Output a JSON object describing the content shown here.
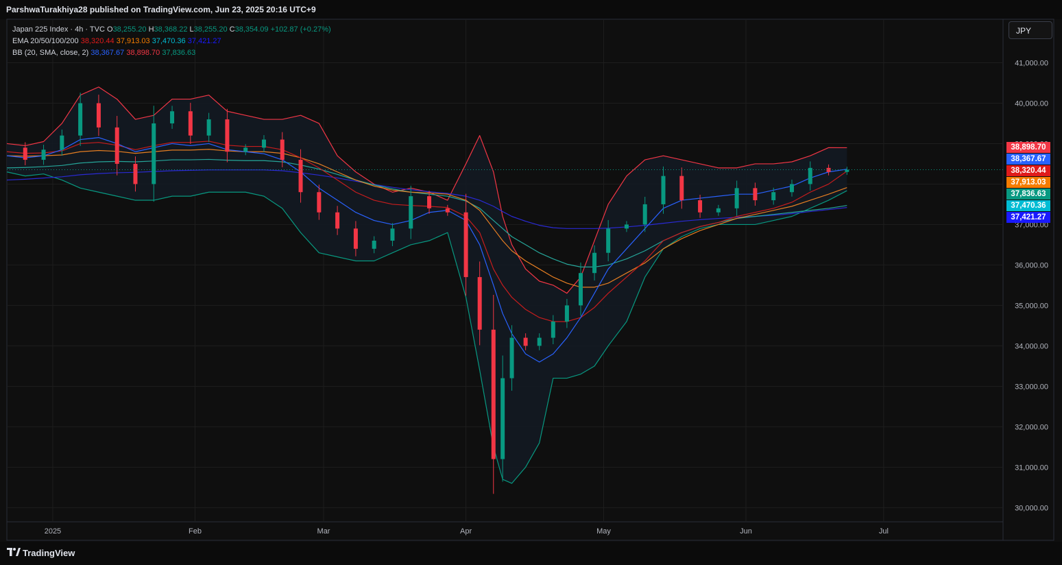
{
  "header": {
    "published": "ParshwaTurakhiya28 published on TradingView.com, Jun 23, 2025 20:16 UTC+9"
  },
  "legend": {
    "symbol": "Japan 225 Index · 4h · TVC",
    "o_label": "O",
    "o_value": "38,255.20",
    "h_label": "H",
    "h_value": "38,368.22",
    "l_label": "L",
    "l_value": "38,255.20",
    "c_label": "C",
    "c_value": "38,354.09",
    "change": "+102.87 (+0.27%)",
    "ema_label": "EMA 20/50/100/200",
    "ema20": "38,320.44",
    "ema50": "37,913.03",
    "ema100": "37,470.36",
    "ema200": "37,421.27",
    "bb_label": "BB (20, SMA, close, 2)",
    "bb_basis": "38,367.67",
    "bb_upper": "38,898.70",
    "bb_lower": "37,836.63"
  },
  "currency_button": "JPY",
  "price_tags": [
    {
      "text": "38,898.70",
      "value": 38898.7,
      "color": "#f23645"
    },
    {
      "text": "38,367.67",
      "value": 38367.67,
      "color": "#2962ff"
    },
    {
      "text": "38,320.44",
      "value": 38320.44,
      "color": "#e01b1b"
    },
    {
      "text": "37,913.03",
      "value": 37913.03,
      "color": "#f57c00"
    },
    {
      "text": "37,836.63",
      "value": 37836.63,
      "color": "#089981"
    },
    {
      "text": "37,470.36",
      "value": 37470.36,
      "color": "#00bcd4"
    },
    {
      "text": "37,421.27",
      "value": 37421.27,
      "color": "#1a1aff"
    }
  ],
  "footer": {
    "brand": "TradingView"
  },
  "colors": {
    "up": "#089981",
    "down": "#f23645",
    "ema20": "#c81d1d",
    "ema50": "#e67e22",
    "ema100": "#26a69a",
    "ema200": "#2a2ad4",
    "bb_basis": "#2962ff",
    "bb_band": "#f23645",
    "bb_lower": "#089981",
    "bb_fill": "#131a22",
    "grid": "#1e1e1e",
    "axis_text": "#b2b5be"
  },
  "chart_data": {
    "type": "candlestick",
    "timeframe": "4h",
    "ylim": [
      29700,
      41500
    ],
    "y_ticks": [
      30000,
      31000,
      32000,
      33000,
      34000,
      35000,
      36000,
      37000,
      38000,
      39000,
      40000,
      41000
    ],
    "y_tick_labels": [
      "30,000.00",
      "31,000.00",
      "32,000.00",
      "33,000.00",
      "34,000.00",
      "35,000.00",
      "36,000.00",
      "37,000.00",
      "38,000.00",
      "39,000.00",
      "40,000.00",
      "41,000.00"
    ],
    "x_range": [
      "2024-12-22",
      "2025-07-27"
    ],
    "x_ticks": [
      {
        "label": "2025",
        "date": "2025-01-01"
      },
      {
        "label": "Feb",
        "date": "2025-02-01"
      },
      {
        "label": "Mar",
        "date": "2025-03-01"
      },
      {
        "label": "Apr",
        "date": "2025-04-01"
      },
      {
        "label": "May",
        "date": "2025-05-01"
      },
      {
        "label": "Jun",
        "date": "2025-06-01"
      },
      {
        "label": "Jul",
        "date": "2025-07-01"
      }
    ],
    "last_price": 38354.09,
    "close_series": {
      "dates": [
        "2024-12-22",
        "2024-12-26",
        "2024-12-30",
        "2025-01-03",
        "2025-01-07",
        "2025-01-11",
        "2025-01-15",
        "2025-01-19",
        "2025-01-23",
        "2025-01-27",
        "2025-01-31",
        "2025-02-04",
        "2025-02-08",
        "2025-02-12",
        "2025-02-16",
        "2025-02-20",
        "2025-02-24",
        "2025-02-28",
        "2025-03-04",
        "2025-03-08",
        "2025-03-12",
        "2025-03-16",
        "2025-03-20",
        "2025-03-24",
        "2025-03-28",
        "2025-04-01",
        "2025-04-04",
        "2025-04-07",
        "2025-04-09",
        "2025-04-11",
        "2025-04-14",
        "2025-04-17",
        "2025-04-20",
        "2025-04-23",
        "2025-04-26",
        "2025-04-29",
        "2025-05-02",
        "2025-05-06",
        "2025-05-10",
        "2025-05-14",
        "2025-05-18",
        "2025-05-22",
        "2025-05-26",
        "2025-05-30",
        "2025-06-03",
        "2025-06-07",
        "2025-06-11",
        "2025-06-15",
        "2025-06-19",
        "2025-06-23"
      ],
      "values": [
        38900,
        38600,
        38850,
        39200,
        40000,
        39400,
        38500,
        38000,
        39500,
        39800,
        39200,
        39600,
        38800,
        38900,
        39100,
        38600,
        37800,
        37300,
        36900,
        36400,
        36600,
        36900,
        37700,
        37400,
        37300,
        35700,
        34400,
        31200,
        33200,
        34200,
        34000,
        34200,
        34600,
        35000,
        35800,
        36300,
        36900,
        37000,
        37500,
        38200,
        37600,
        37300,
        37400,
        37900,
        37600,
        37800,
        38000,
        38400,
        38300,
        38354
      ]
    },
    "ema20": [
      38800,
      38760,
      38770,
      38820,
      39000,
      39030,
      38960,
      38850,
      38950,
      39030,
      39030,
      39060,
      38960,
      38930,
      38930,
      38850,
      38650,
      38400,
      38100,
      37800,
      37600,
      37500,
      37470,
      37450,
      37420,
      37200,
      36800,
      35900,
      35500,
      35200,
      34900,
      34700,
      34600,
      34600,
      34700,
      34950,
      35300,
      35700,
      36100,
      36600,
      36800,
      36950,
      37050,
      37200,
      37300,
      37400,
      37550,
      37800,
      38000,
      38320
    ],
    "ema50": [
      38700,
      38690,
      38700,
      38720,
      38800,
      38830,
      38810,
      38760,
      38800,
      38840,
      38840,
      38860,
      38820,
      38800,
      38800,
      38760,
      38650,
      38500,
      38300,
      38100,
      37950,
      37850,
      37800,
      37780,
      37750,
      37600,
      37350,
      36900,
      36600,
      36350,
      36100,
      35900,
      35700,
      35550,
      35450,
      35450,
      35550,
      35800,
      36050,
      36400,
      36650,
      36850,
      37000,
      37150,
      37250,
      37350,
      37450,
      37600,
      37750,
      37913
    ],
    "ema100": [
      38400,
      38410,
      38430,
      38460,
      38520,
      38550,
      38560,
      38550,
      38570,
      38600,
      38600,
      38610,
      38590,
      38580,
      38580,
      38550,
      38470,
      38370,
      38240,
      38100,
      37980,
      37880,
      37800,
      37750,
      37700,
      37580,
      37400,
      37100,
      36900,
      36700,
      36500,
      36300,
      36150,
      36020,
      35950,
      35950,
      36000,
      36150,
      36350,
      36600,
      36800,
      36950,
      37050,
      37150,
      37200,
      37250,
      37300,
      37350,
      37400,
      37470
    ],
    "ema200": [
      38100,
      38120,
      38150,
      38180,
      38230,
      38260,
      38280,
      38290,
      38310,
      38330,
      38340,
      38350,
      38350,
      38350,
      38350,
      38330,
      38280,
      38220,
      38150,
      38070,
      37990,
      37920,
      37860,
      37810,
      37770,
      37700,
      37600,
      37450,
      37320,
      37200,
      37080,
      36980,
      36920,
      36900,
      36900,
      36900,
      36910,
      36940,
      36980,
      37030,
      37080,
      37120,
      37150,
      37180,
      37200,
      37230,
      37270,
      37320,
      37370,
      37421
    ],
    "bb_upper": [
      39000,
      38950,
      39050,
      39500,
      40200,
      40400,
      40100,
      39600,
      39700,
      40100,
      40100,
      40200,
      39800,
      39700,
      39600,
      39600,
      39700,
      39500,
      38700,
      38300,
      38000,
      37800,
      37900,
      37800,
      37600,
      38500,
      39200,
      38300,
      37200,
      36500,
      35900,
      35600,
      35500,
      35300,
      35700,
      36600,
      37500,
      38200,
      38600,
      38700,
      38600,
      38500,
      38400,
      38400,
      38500,
      38500,
      38550,
      38700,
      38900,
      38899
    ],
    "bb_basis": [
      38700,
      38650,
      38700,
      38850,
      39100,
      39150,
      39000,
      38800,
      38900,
      39000,
      38950,
      39000,
      38850,
      38800,
      38750,
      38600,
      38300,
      37900,
      37600,
      37300,
      37100,
      37000,
      37100,
      37300,
      37350,
      37100,
      36500,
      35500,
      34800,
      34300,
      33800,
      33600,
      33800,
      34200,
      34700,
      35300,
      35900,
      36400,
      36900,
      37400,
      37600,
      37650,
      37700,
      37750,
      37750,
      37850,
      37950,
      38150,
      38300,
      38368
    ],
    "bb_lower": [
      38300,
      38200,
      38250,
      38100,
      37900,
      37800,
      37700,
      37600,
      37600,
      37700,
      37700,
      37800,
      37800,
      37800,
      37700,
      37400,
      36800,
      36300,
      36200,
      36100,
      36100,
      36300,
      36500,
      36600,
      36800,
      35200,
      33400,
      31500,
      30700,
      30600,
      31000,
      31600,
      33200,
      33200,
      33300,
      33500,
      34000,
      34600,
      35700,
      36400,
      36700,
      36900,
      37000,
      37000,
      37000,
      37100,
      37200,
      37400,
      37600,
      37837
    ]
  }
}
